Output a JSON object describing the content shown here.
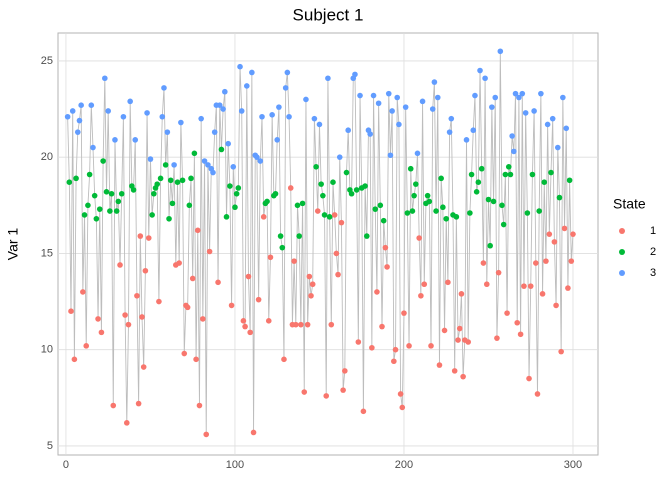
{
  "chart_data": {
    "type": "scatter",
    "title": "Subject 1",
    "y_label": "Var 1",
    "legend_title": "State",
    "series": [
      {
        "name": "1",
        "color": "#F8766D"
      },
      {
        "name": "2",
        "color": "#00BA38"
      },
      {
        "name": "3",
        "color": "#619CFF"
      }
    ],
    "line_color": "#bdbdbd",
    "xlim": [
      -4.7,
      314.8
    ],
    "ylim": [
      4.53,
      26.45
    ],
    "xticks": [
      0,
      100,
      200,
      300
    ],
    "yticks": [
      5,
      10,
      15,
      20,
      25
    ],
    "grid": true,
    "x": [
      1,
      2,
      3,
      4,
      5,
      6,
      7,
      8,
      9,
      10,
      11,
      12,
      13,
      14,
      15,
      16,
      17,
      18,
      19,
      20,
      21,
      22,
      23,
      24,
      25,
      26,
      27,
      28,
      29,
      30,
      31,
      32,
      33,
      34,
      35,
      36,
      37,
      38,
      39,
      40,
      41,
      42,
      43,
      44,
      45,
      46,
      47,
      48,
      49,
      50,
      51,
      52,
      53,
      54,
      55,
      56,
      57,
      58,
      59,
      60,
      61,
      62,
      63,
      64,
      65,
      66,
      67,
      68,
      69,
      70,
      71,
      72,
      73,
      74,
      75,
      76,
      77,
      78,
      79,
      80,
      81,
      82,
      83,
      84,
      85,
      86,
      87,
      88,
      89,
      90,
      91,
      92,
      93,
      94,
      95,
      96,
      97,
      98,
      99,
      100,
      101,
      102,
      103,
      104,
      105,
      106,
      107,
      108,
      109,
      110,
      111,
      112,
      113,
      114,
      115,
      116,
      117,
      118,
      119,
      120,
      121,
      122,
      123,
      124,
      125,
      126,
      127,
      128,
      129,
      130,
      131,
      132,
      133,
      134,
      135,
      136,
      137,
      138,
      139,
      140,
      141,
      142,
      143,
      144,
      145,
      146,
      147,
      148,
      149,
      150,
      151,
      152,
      153,
      154,
      155,
      156,
      157,
      158,
      159,
      160,
      161,
      162,
      163,
      164,
      165,
      166,
      167,
      168,
      169,
      170,
      171,
      172,
      173,
      174,
      175,
      176,
      177,
      178,
      179,
      180,
      181,
      182,
      183,
      184,
      185,
      186,
      187,
      188,
      189,
      190,
      191,
      192,
      193,
      194,
      195,
      196,
      197,
      198,
      199,
      200,
      201,
      202,
      203,
      204,
      205,
      206,
      207,
      208,
      209,
      210,
      211,
      212,
      213,
      214,
      215,
      216,
      217,
      218,
      219,
      220,
      221,
      222,
      223,
      224,
      225,
      226,
      227,
      228,
      229,
      230,
      231,
      232,
      233,
      234,
      235,
      236,
      237,
      238,
      239,
      240,
      241,
      242,
      243,
      244,
      245,
      246,
      247,
      248,
      249,
      250,
      251,
      252,
      253,
      254,
      255,
      256,
      257,
      258,
      259,
      260,
      261,
      262,
      263,
      264,
      265,
      266,
      267,
      268,
      269,
      270,
      271,
      272,
      273,
      274,
      275,
      276,
      277,
      278,
      279,
      280,
      281,
      282,
      283,
      284,
      285,
      286,
      287,
      288,
      289,
      290,
      291,
      292,
      293,
      294,
      295,
      296,
      297,
      298,
      299,
      300
    ],
    "values": [
      22.1,
      18.7,
      12.0,
      22.4,
      9.5,
      18.9,
      21.3,
      21.9,
      22.7,
      13.0,
      17.0,
      10.2,
      17.5,
      19.1,
      22.7,
      20.5,
      18.0,
      16.8,
      11.6,
      17.3,
      10.9,
      19.8,
      24.1,
      18.2,
      22.4,
      17.2,
      18.1,
      7.1,
      20.9,
      17.2,
      17.7,
      14.4,
      18.1,
      22.1,
      11.8,
      6.2,
      11.3,
      22.9,
      18.5,
      18.3,
      20.9,
      12.8,
      7.2,
      15.9,
      11.7,
      9.1,
      14.1,
      22.3,
      15.8,
      19.9,
      17.0,
      18.1,
      18.4,
      18.6,
      12.5,
      18.9,
      22.1,
      23.6,
      19.6,
      21.3,
      16.8,
      18.8,
      17.6,
      19.6,
      14.4,
      18.7,
      14.5,
      21.8,
      18.8,
      9.8,
      12.3,
      12.2,
      17.5,
      18.9,
      13.7,
      20.2,
      9.5,
      16.2,
      7.1,
      22.0,
      11.6,
      19.8,
      5.6,
      19.6,
      15.1,
      19.4,
      19.2,
      21.3,
      22.7,
      13.5,
      22.7,
      20.4,
      22.5,
      23.4,
      16.9,
      20.7,
      18.5,
      12.3,
      19.5,
      17.4,
      18.1,
      18.4,
      24.7,
      22.4,
      11.5,
      11.2,
      23.7,
      13.8,
      10.9,
      24.4,
      5.7,
      20.1,
      20.0,
      12.6,
      19.8,
      22.1,
      16.9,
      17.6,
      17.7,
      11.5,
      14.8,
      22.2,
      18.0,
      18.1,
      20.9,
      22.6,
      15.9,
      15.3,
      9.5,
      23.6,
      24.4,
      22.1,
      18.4,
      11.3,
      14.6,
      11.3,
      17.5,
      15.9,
      11.3,
      17.6,
      7.8,
      23.0,
      11.3,
      13.8,
      12.8,
      13.4,
      22.0,
      19.5,
      17.2,
      21.7,
      18.6,
      18.0,
      17.0,
      7.6,
      24.1,
      16.9,
      11.3,
      18.7,
      17.0,
      15.0,
      13.9,
      20.0,
      16.6,
      7.9,
      8.9,
      19.2,
      21.4,
      18.3,
      18.1,
      24.1,
      24.3,
      18.3,
      10.4,
      23.2,
      18.4,
      6.8,
      18.5,
      15.9,
      21.4,
      21.2,
      10.1,
      23.2,
      17.3,
      13.0,
      22.8,
      17.5,
      11.2,
      16.7,
      15.3,
      14.3,
      23.3,
      20.1,
      22.4,
      9.4,
      10.0,
      23.1,
      21.7,
      7.7,
      7.0,
      11.9,
      22.6,
      17.1,
      10.2,
      19.4,
      17.2,
      18.0,
      18.6,
      20.2,
      15.8,
      12.8,
      22.9,
      13.4,
      17.6,
      18.0,
      17.7,
      10.2,
      22.5,
      23.9,
      17.2,
      23.1,
      9.2,
      18.9,
      17.4,
      11.0,
      16.8,
      13.5,
      21.3,
      22.0,
      17.0,
      8.9,
      16.9,
      10.5,
      11.1,
      12.9,
      8.6,
      10.5,
      20.9,
      10.4,
      17.1,
      19.1,
      21.4,
      23.2,
      18.2,
      18.7,
      24.5,
      19.4,
      14.5,
      24.1,
      13.4,
      17.8,
      15.4,
      22.6,
      17.7,
      23.1,
      10.6,
      14.0,
      25.5,
      17.5,
      16.5,
      19.1,
      11.9,
      19.5,
      19.1,
      21.1,
      20.3,
      23.3,
      11.4,
      23.1,
      10.8,
      23.3,
      13.3,
      22.3,
      17.1,
      8.5,
      13.3,
      19.1,
      22.4,
      14.5,
      7.7,
      17.2,
      23.3,
      12.9,
      18.7,
      14.6,
      21.7,
      16.0,
      19.2,
      22.0,
      15.6,
      12.3,
      20.5,
      17.9,
      9.9,
      23.1,
      16.3,
      21.5,
      13.2,
      18.8,
      14.6,
      16.0
    ],
    "states": [
      3,
      2,
      1,
      3,
      1,
      2,
      3,
      3,
      3,
      1,
      2,
      1,
      2,
      2,
      3,
      3,
      2,
      2,
      1,
      2,
      1,
      2,
      3,
      2,
      3,
      2,
      2,
      1,
      3,
      2,
      2,
      1,
      2,
      3,
      1,
      1,
      1,
      3,
      2,
      2,
      3,
      1,
      1,
      1,
      1,
      1,
      1,
      3,
      1,
      3,
      2,
      2,
      2,
      2,
      1,
      2,
      3,
      3,
      2,
      3,
      2,
      2,
      2,
      3,
      1,
      2,
      1,
      3,
      2,
      1,
      1,
      1,
      2,
      2,
      1,
      2,
      1,
      1,
      1,
      3,
      1,
      3,
      1,
      3,
      1,
      3,
      3,
      3,
      3,
      1,
      3,
      2,
      3,
      3,
      2,
      3,
      2,
      1,
      3,
      2,
      2,
      2,
      3,
      3,
      1,
      1,
      3,
      1,
      1,
      3,
      1,
      3,
      3,
      1,
      3,
      3,
      1,
      2,
      2,
      1,
      1,
      3,
      2,
      2,
      3,
      3,
      2,
      2,
      1,
      3,
      3,
      3,
      1,
      1,
      1,
      1,
      2,
      2,
      1,
      2,
      1,
      3,
      1,
      1,
      1,
      1,
      3,
      2,
      1,
      3,
      2,
      2,
      2,
      1,
      3,
      2,
      1,
      2,
      1,
      1,
      1,
      3,
      1,
      1,
      1,
      2,
      3,
      2,
      2,
      3,
      3,
      2,
      1,
      3,
      2,
      1,
      2,
      2,
      3,
      3,
      1,
      3,
      2,
      1,
      3,
      2,
      1,
      2,
      1,
      1,
      3,
      3,
      3,
      1,
      1,
      3,
      3,
      1,
      1,
      1,
      3,
      2,
      1,
      2,
      2,
      2,
      2,
      3,
      1,
      1,
      3,
      1,
      2,
      2,
      2,
      1,
      3,
      3,
      2,
      3,
      1,
      2,
      2,
      1,
      2,
      1,
      3,
      3,
      2,
      1,
      2,
      1,
      1,
      1,
      1,
      1,
      3,
      1,
      2,
      2,
      3,
      3,
      2,
      2,
      3,
      2,
      1,
      3,
      1,
      2,
      2,
      3,
      2,
      3,
      1,
      1,
      3,
      2,
      2,
      2,
      1,
      2,
      2,
      3,
      3,
      3,
      1,
      3,
      1,
      3,
      1,
      3,
      2,
      1,
      1,
      2,
      3,
      1,
      1,
      2,
      3,
      1,
      2,
      1,
      3,
      1,
      2,
      3,
      1,
      1,
      3,
      2,
      1,
      3,
      1,
      3,
      1,
      2,
      1,
      1
    ]
  }
}
